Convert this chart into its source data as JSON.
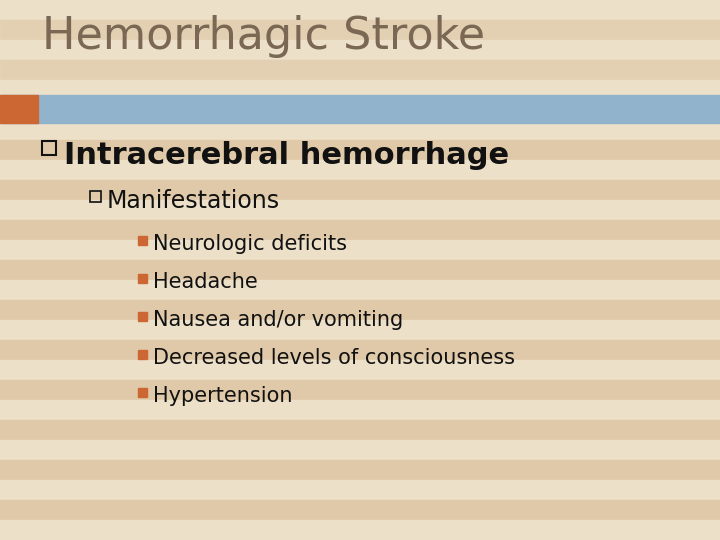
{
  "title": "Hemorrhagic Stroke",
  "title_color": "#7a6855",
  "title_fontsize": 32,
  "background_color": "#e8d5b5",
  "stripe_color_light": "#ede0c8",
  "stripe_color_dark": "#dfc9a8",
  "bar_color": "#91b4cc",
  "bar_orange_color": "#cc6633",
  "level1_text": "Intracerebral hemorrhage",
  "level1_fontsize": 22,
  "level2_text": "Manifestations",
  "level2_fontsize": 17,
  "level3_items": [
    "Neurologic deficits",
    "Headache",
    "Nausea and/or vomiting",
    "Decreased levels of consciousness",
    "Hypertension"
  ],
  "level3_fontsize": 15,
  "level3_bullet_color": "#cc6633",
  "text_color": "#111111",
  "fig_width": 7.2,
  "fig_height": 5.4,
  "dpi": 100
}
